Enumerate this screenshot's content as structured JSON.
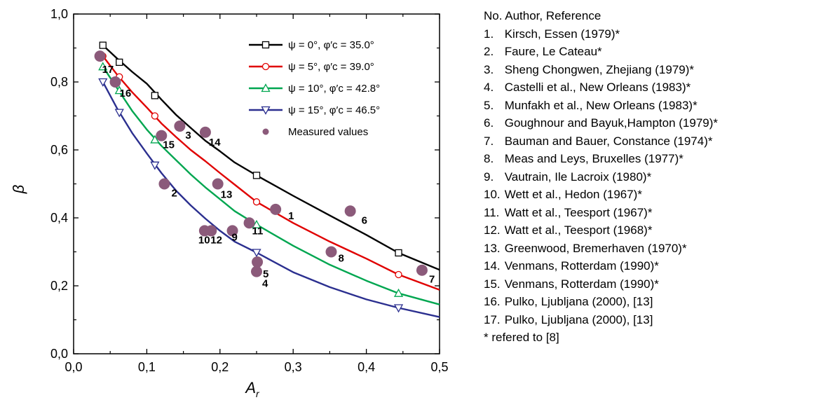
{
  "chart_data": {
    "type": "line",
    "xlabel": "A",
    "xlabel_sub": "r",
    "ylabel": "β",
    "xlim": [
      0.0,
      0.5
    ],
    "ylim": [
      0.0,
      1.0
    ],
    "xticks": [
      "0,0",
      "0,1",
      "0,2",
      "0,3",
      "0,4",
      "0,5"
    ],
    "yticks": [
      "0,0",
      "0,2",
      "0,4",
      "0,6",
      "0,8",
      "1,0"
    ],
    "grid": false,
    "legend_position": "top-right",
    "series": [
      {
        "name": "ψ = 0°,   φ′c = 35.0°",
        "color": "#000000",
        "marker": "square",
        "x": [
          0.04,
          0.0625,
          0.111,
          0.25,
          0.444
        ],
        "y": [
          0.908,
          0.858,
          0.76,
          0.525,
          0.297
        ],
        "curve": [
          [
            0.04,
            0.908
          ],
          [
            0.06,
            0.868
          ],
          [
            0.08,
            0.83
          ],
          [
            0.1,
            0.795
          ],
          [
            0.12,
            0.748
          ],
          [
            0.14,
            0.703
          ],
          [
            0.16,
            0.665
          ],
          [
            0.18,
            0.627
          ],
          [
            0.2,
            0.596
          ],
          [
            0.22,
            0.563
          ],
          [
            0.25,
            0.525
          ],
          [
            0.3,
            0.465
          ],
          [
            0.35,
            0.407
          ],
          [
            0.4,
            0.35
          ],
          [
            0.444,
            0.297
          ],
          [
            0.5,
            0.247
          ]
        ]
      },
      {
        "name": "ψ = 5°,   φ′c = 39.0°",
        "color": "#e00000",
        "marker": "circle",
        "x": [
          0.04,
          0.0625,
          0.111,
          0.25,
          0.444
        ],
        "y": [
          0.876,
          0.815,
          0.7,
          0.447,
          0.233
        ],
        "curve": [
          [
            0.04,
            0.876
          ],
          [
            0.06,
            0.82
          ],
          [
            0.08,
            0.77
          ],
          [
            0.1,
            0.725
          ],
          [
            0.12,
            0.678
          ],
          [
            0.14,
            0.638
          ],
          [
            0.16,
            0.6
          ],
          [
            0.18,
            0.567
          ],
          [
            0.2,
            0.532
          ],
          [
            0.22,
            0.498
          ],
          [
            0.25,
            0.447
          ],
          [
            0.3,
            0.385
          ],
          [
            0.35,
            0.33
          ],
          [
            0.4,
            0.28
          ],
          [
            0.444,
            0.233
          ],
          [
            0.5,
            0.188
          ]
        ]
      },
      {
        "name": "ψ = 10°, φ′c = 42.8°",
        "color": "#00a650",
        "marker": "triangle-up",
        "x": [
          0.04,
          0.0625,
          0.111,
          0.25,
          0.444
        ],
        "y": [
          0.845,
          0.775,
          0.63,
          0.38,
          0.178
        ],
        "curve": [
          [
            0.04,
            0.845
          ],
          [
            0.06,
            0.78
          ],
          [
            0.08,
            0.715
          ],
          [
            0.1,
            0.66
          ],
          [
            0.12,
            0.612
          ],
          [
            0.14,
            0.57
          ],
          [
            0.16,
            0.528
          ],
          [
            0.18,
            0.49
          ],
          [
            0.2,
            0.455
          ],
          [
            0.22,
            0.42
          ],
          [
            0.25,
            0.38
          ],
          [
            0.3,
            0.318
          ],
          [
            0.35,
            0.262
          ],
          [
            0.4,
            0.215
          ],
          [
            0.444,
            0.178
          ],
          [
            0.5,
            0.145
          ]
        ]
      },
      {
        "name": "ψ = 15°, φ′c = 46.5°",
        "color": "#2b2f8f",
        "marker": "triangle-down",
        "x": [
          0.04,
          0.0625,
          0.111,
          0.25,
          0.444
        ],
        "y": [
          0.8,
          0.71,
          0.555,
          0.298,
          0.135
        ],
        "curve": [
          [
            0.04,
            0.8
          ],
          [
            0.06,
            0.72
          ],
          [
            0.08,
            0.65
          ],
          [
            0.1,
            0.59
          ],
          [
            0.12,
            0.532
          ],
          [
            0.14,
            0.48
          ],
          [
            0.16,
            0.437
          ],
          [
            0.18,
            0.398
          ],
          [
            0.2,
            0.362
          ],
          [
            0.22,
            0.33
          ],
          [
            0.25,
            0.298
          ],
          [
            0.3,
            0.24
          ],
          [
            0.35,
            0.196
          ],
          [
            0.4,
            0.16
          ],
          [
            0.444,
            0.135
          ],
          [
            0.5,
            0.108
          ]
        ]
      }
    ],
    "measured": {
      "name": "Measured values",
      "color": "#8b5a7a",
      "points": [
        {
          "label": "1",
          "x": 0.276,
          "y": 0.425
        },
        {
          "label": "2",
          "x": 0.124,
          "y": 0.5
        },
        {
          "label": "3",
          "x": 0.145,
          "y": 0.67
        },
        {
          "label": "4",
          "x": 0.25,
          "y": 0.242
        },
        {
          "label": "5",
          "x": 0.251,
          "y": 0.27
        },
        {
          "label": "6",
          "x": 0.378,
          "y": 0.42
        },
        {
          "label": "7",
          "x": 0.476,
          "y": 0.246
        },
        {
          "label": "8",
          "x": 0.352,
          "y": 0.3
        },
        {
          "label": "9",
          "x": 0.217,
          "y": 0.362
        },
        {
          "label": "10",
          "x": 0.179,
          "y": 0.362
        },
        {
          "label": "12",
          "x": 0.188,
          "y": 0.362
        },
        {
          "label": "11",
          "x": 0.24,
          "y": 0.385
        },
        {
          "label": "13",
          "x": 0.197,
          "y": 0.5
        },
        {
          "label": "14",
          "x": 0.18,
          "y": 0.652
        },
        {
          "label": "15",
          "x": 0.12,
          "y": 0.642
        },
        {
          "label": "16",
          "x": 0.057,
          "y": 0.8
        },
        {
          "label": "17",
          "x": 0.036,
          "y": 0.876
        }
      ]
    }
  },
  "references": {
    "header": "No. Author, Reference",
    "items": [
      {
        "num": "1.",
        "text": "Kirsch, Essen (1979)*"
      },
      {
        "num": "2.",
        "text": "Faure, Le Cateau*"
      },
      {
        "num": "3.",
        "text": "Sheng Chongwen, Zhejiang (1979)*"
      },
      {
        "num": "4.",
        "text": "Castelli et al., New Orleans (1983)*"
      },
      {
        "num": "5.",
        "text": "Munfakh et al., New Orleans (1983)*"
      },
      {
        "num": "6.",
        "text": "Goughnour and Bayuk,Hampton (1979)*"
      },
      {
        "num": "7.",
        "text": "Bauman and Bauer, Constance (1974)*"
      },
      {
        "num": "8.",
        "text": "Meas and Leys, Bruxelles (1977)*"
      },
      {
        "num": "9.",
        "text": "Vautrain, Ile Lacroix (1980)*"
      },
      {
        "num": "10.",
        "text": "Wett et al., Hedon (1967)*"
      },
      {
        "num": "11.",
        "text": "Watt et al., Teesport (1967)*"
      },
      {
        "num": "12.",
        "text": "Watt et al., Teesport (1968)*"
      },
      {
        "num": "13.",
        "text": "Greenwood, Bremerhaven (1970)*"
      },
      {
        "num": "14.",
        "text": "Venmans, Rotterdam (1990)*"
      },
      {
        "num": "15.",
        "text": "Venmans, Rotterdam (1990)*"
      },
      {
        "num": "16.",
        "text": "Pulko, Ljubljana (2000), [13]"
      },
      {
        "num": "17.",
        "text": "Pulko, Ljubljana (2000), [13]"
      }
    ],
    "footer": "* refered to [8]"
  }
}
